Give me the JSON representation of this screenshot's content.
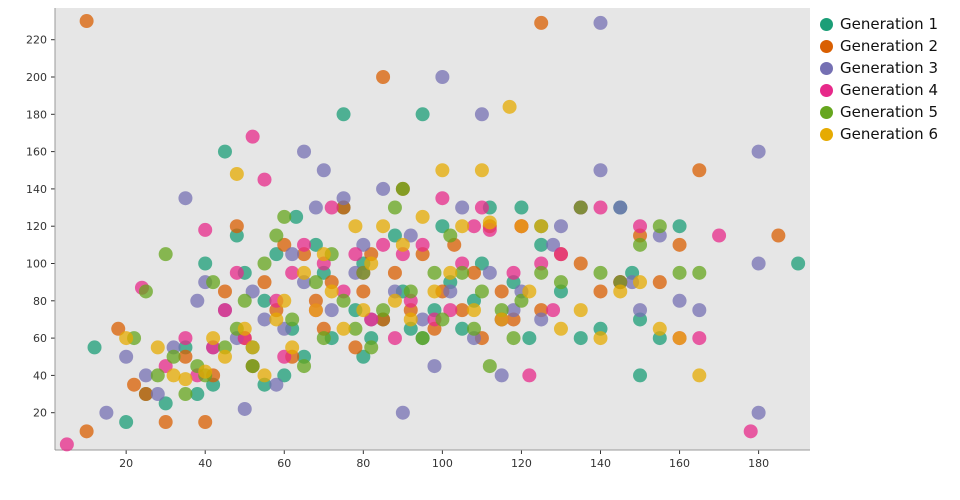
{
  "chart_data": {
    "type": "scatter",
    "title": "",
    "xlabel": "",
    "ylabel": "",
    "xlim": [
      2,
      193
    ],
    "ylim": [
      0,
      237
    ],
    "xticks": [
      20,
      40,
      60,
      80,
      100,
      120,
      140,
      160,
      180
    ],
    "yticks": [
      20,
      40,
      60,
      80,
      100,
      120,
      140,
      160,
      180,
      200,
      220
    ],
    "legend_position": "right",
    "grid": false,
    "plot_background": "#e6e6e6",
    "marker": {
      "radius": 7,
      "opacity": 0.75
    },
    "series": [
      {
        "name": "Generation 1",
        "color": "#1b9e77",
        "points": [
          [
            12,
            55
          ],
          [
            20,
            15
          ],
          [
            25,
            30
          ],
          [
            30,
            25
          ],
          [
            35,
            55
          ],
          [
            38,
            30
          ],
          [
            40,
            100
          ],
          [
            42,
            35
          ],
          [
            45,
            160
          ],
          [
            48,
            115
          ],
          [
            50,
            95
          ],
          [
            52,
            55
          ],
          [
            55,
            80
          ],
          [
            55,
            35
          ],
          [
            58,
            105
          ],
          [
            60,
            40
          ],
          [
            62,
            65
          ],
          [
            63,
            125
          ],
          [
            65,
            50
          ],
          [
            68,
            110
          ],
          [
            70,
            95
          ],
          [
            72,
            60
          ],
          [
            75,
            180
          ],
          [
            75,
            130
          ],
          [
            78,
            75
          ],
          [
            80,
            100
          ],
          [
            80,
            50
          ],
          [
            82,
            60
          ],
          [
            85,
            70
          ],
          [
            88,
            115
          ],
          [
            90,
            85
          ],
          [
            92,
            65
          ],
          [
            95,
            180
          ],
          [
            95,
            60
          ],
          [
            98,
            75
          ],
          [
            100,
            120
          ],
          [
            102,
            90
          ],
          [
            105,
            65
          ],
          [
            108,
            80
          ],
          [
            110,
            100
          ],
          [
            112,
            130
          ],
          [
            115,
            70
          ],
          [
            118,
            90
          ],
          [
            120,
            130
          ],
          [
            122,
            60
          ],
          [
            125,
            120
          ],
          [
            125,
            110
          ],
          [
            130,
            85
          ],
          [
            135,
            60
          ],
          [
            140,
            65
          ],
          [
            145,
            130
          ],
          [
            148,
            95
          ],
          [
            150,
            70
          ],
          [
            150,
            40
          ],
          [
            155,
            60
          ],
          [
            160,
            120
          ],
          [
            190,
            100
          ]
        ]
      },
      {
        "name": "Generation 2",
        "color": "#d95f02",
        "points": [
          [
            10,
            230
          ],
          [
            10,
            10
          ],
          [
            18,
            65
          ],
          [
            22,
            35
          ],
          [
            25,
            30
          ],
          [
            30,
            15
          ],
          [
            35,
            50
          ],
          [
            40,
            15
          ],
          [
            42,
            40
          ],
          [
            45,
            85
          ],
          [
            48,
            120
          ],
          [
            50,
            60
          ],
          [
            52,
            45
          ],
          [
            55,
            90
          ],
          [
            58,
            75
          ],
          [
            60,
            110
          ],
          [
            62,
            50
          ],
          [
            65,
            105
          ],
          [
            68,
            80
          ],
          [
            70,
            65
          ],
          [
            72,
            90
          ],
          [
            75,
            130
          ],
          [
            78,
            55
          ],
          [
            80,
            85
          ],
          [
            82,
            105
          ],
          [
            85,
            200
          ],
          [
            85,
            70
          ],
          [
            88,
            95
          ],
          [
            90,
            140
          ],
          [
            92,
            75
          ],
          [
            95,
            105
          ],
          [
            98,
            65
          ],
          [
            100,
            85
          ],
          [
            103,
            110
          ],
          [
            105,
            75
          ],
          [
            108,
            95
          ],
          [
            110,
            60
          ],
          [
            112,
            120
          ],
          [
            115,
            85
          ],
          [
            118,
            70
          ],
          [
            120,
            120
          ],
          [
            125,
            229
          ],
          [
            125,
            75
          ],
          [
            130,
            105
          ],
          [
            135,
            100
          ],
          [
            140,
            85
          ],
          [
            145,
            90
          ],
          [
            150,
            115
          ],
          [
            155,
            90
          ],
          [
            160,
            110
          ],
          [
            165,
            150
          ],
          [
            185,
            115
          ]
        ]
      },
      {
        "name": "Generation 3",
        "color": "#7570b3",
        "points": [
          [
            15,
            20
          ],
          [
            20,
            50
          ],
          [
            25,
            40
          ],
          [
            28,
            30
          ],
          [
            32,
            55
          ],
          [
            35,
            135
          ],
          [
            38,
            80
          ],
          [
            40,
            90
          ],
          [
            42,
            55
          ],
          [
            45,
            75
          ],
          [
            48,
            60
          ],
          [
            50,
            22
          ],
          [
            52,
            85
          ],
          [
            55,
            70
          ],
          [
            58,
            35
          ],
          [
            60,
            65
          ],
          [
            62,
            105
          ],
          [
            65,
            160
          ],
          [
            65,
            90
          ],
          [
            68,
            130
          ],
          [
            70,
            150
          ],
          [
            72,
            75
          ],
          [
            75,
            135
          ],
          [
            78,
            95
          ],
          [
            80,
            110
          ],
          [
            82,
            70
          ],
          [
            85,
            140
          ],
          [
            88,
            85
          ],
          [
            90,
            20
          ],
          [
            92,
            115
          ],
          [
            95,
            70
          ],
          [
            98,
            45
          ],
          [
            100,
            200
          ],
          [
            102,
            85
          ],
          [
            105,
            130
          ],
          [
            108,
            60
          ],
          [
            110,
            180
          ],
          [
            112,
            95
          ],
          [
            115,
            40
          ],
          [
            118,
            75
          ],
          [
            120,
            85
          ],
          [
            125,
            70
          ],
          [
            128,
            110
          ],
          [
            130,
            120
          ],
          [
            135,
            130
          ],
          [
            140,
            229
          ],
          [
            140,
            150
          ],
          [
            145,
            130
          ],
          [
            148,
            90
          ],
          [
            150,
            75
          ],
          [
            155,
            115
          ],
          [
            160,
            80
          ],
          [
            165,
            75
          ],
          [
            180,
            160
          ],
          [
            180,
            100
          ],
          [
            180,
            20
          ]
        ]
      },
      {
        "name": "Generation 4",
        "color": "#e7298a",
        "points": [
          [
            5,
            3
          ],
          [
            24,
            87
          ],
          [
            30,
            45
          ],
          [
            35,
            60
          ],
          [
            38,
            40
          ],
          [
            40,
            118
          ],
          [
            42,
            55
          ],
          [
            45,
            75
          ],
          [
            48,
            95
          ],
          [
            50,
            60
          ],
          [
            52,
            168
          ],
          [
            55,
            145
          ],
          [
            58,
            80
          ],
          [
            60,
            50
          ],
          [
            62,
            95
          ],
          [
            65,
            110
          ],
          [
            68,
            75
          ],
          [
            70,
            100
          ],
          [
            72,
            130
          ],
          [
            75,
            85
          ],
          [
            78,
            105
          ],
          [
            80,
            95
          ],
          [
            82,
            70
          ],
          [
            85,
            110
          ],
          [
            88,
            60
          ],
          [
            90,
            105
          ],
          [
            92,
            80
          ],
          [
            95,
            110
          ],
          [
            98,
            70
          ],
          [
            100,
            135
          ],
          [
            102,
            75
          ],
          [
            105,
            100
          ],
          [
            108,
            120
          ],
          [
            110,
            130
          ],
          [
            112,
            118
          ],
          [
            115,
            70
          ],
          [
            118,
            95
          ],
          [
            120,
            120
          ],
          [
            122,
            40
          ],
          [
            125,
            100
          ],
          [
            128,
            75
          ],
          [
            130,
            105
          ],
          [
            135,
            130
          ],
          [
            140,
            130
          ],
          [
            145,
            90
          ],
          [
            150,
            120
          ],
          [
            160,
            60
          ],
          [
            165,
            60
          ],
          [
            170,
            115
          ],
          [
            178,
            10
          ]
        ]
      },
      {
        "name": "Generation 5",
        "color": "#66a61e",
        "points": [
          [
            22,
            60
          ],
          [
            25,
            85
          ],
          [
            28,
            40
          ],
          [
            30,
            105
          ],
          [
            32,
            50
          ],
          [
            35,
            30
          ],
          [
            38,
            45
          ],
          [
            40,
            40
          ],
          [
            42,
            90
          ],
          [
            45,
            55
          ],
          [
            48,
            65
          ],
          [
            50,
            80
          ],
          [
            52,
            45
          ],
          [
            55,
            100
          ],
          [
            58,
            115
          ],
          [
            60,
            125
          ],
          [
            62,
            70
          ],
          [
            65,
            45
          ],
          [
            68,
            90
          ],
          [
            70,
            60
          ],
          [
            72,
            105
          ],
          [
            75,
            80
          ],
          [
            78,
            65
          ],
          [
            80,
            95
          ],
          [
            82,
            55
          ],
          [
            85,
            75
          ],
          [
            88,
            130
          ],
          [
            90,
            140
          ],
          [
            92,
            85
          ],
          [
            95,
            60
          ],
          [
            98,
            95
          ],
          [
            100,
            70
          ],
          [
            102,
            115
          ],
          [
            105,
            95
          ],
          [
            108,
            65
          ],
          [
            110,
            85
          ],
          [
            112,
            45
          ],
          [
            115,
            75
          ],
          [
            118,
            60
          ],
          [
            120,
            80
          ],
          [
            125,
            95
          ],
          [
            130,
            90
          ],
          [
            135,
            130
          ],
          [
            140,
            95
          ],
          [
            145,
            90
          ],
          [
            150,
            110
          ],
          [
            155,
            120
          ],
          [
            160,
            95
          ],
          [
            165,
            95
          ]
        ]
      },
      {
        "name": "Generation 6",
        "color": "#e6ab02",
        "points": [
          [
            20,
            60
          ],
          [
            28,
            55
          ],
          [
            32,
            40
          ],
          [
            35,
            38
          ],
          [
            40,
            42
          ],
          [
            42,
            60
          ],
          [
            45,
            50
          ],
          [
            48,
            148
          ],
          [
            50,
            65
          ],
          [
            52,
            55
          ],
          [
            55,
            40
          ],
          [
            58,
            70
          ],
          [
            60,
            80
          ],
          [
            62,
            55
          ],
          [
            65,
            95
          ],
          [
            68,
            75
          ],
          [
            70,
            105
          ],
          [
            72,
            85
          ],
          [
            75,
            65
          ],
          [
            78,
            120
          ],
          [
            80,
            75
          ],
          [
            82,
            100
          ],
          [
            85,
            120
          ],
          [
            88,
            80
          ],
          [
            90,
            110
          ],
          [
            92,
            70
          ],
          [
            95,
            125
          ],
          [
            98,
            85
          ],
          [
            100,
            150
          ],
          [
            102,
            95
          ],
          [
            105,
            120
          ],
          [
            108,
            75
          ],
          [
            110,
            150
          ],
          [
            112,
            122
          ],
          [
            115,
            70
          ],
          [
            117,
            184
          ],
          [
            120,
            120
          ],
          [
            122,
            85
          ],
          [
            125,
            120
          ],
          [
            130,
            65
          ],
          [
            135,
            75
          ],
          [
            140,
            60
          ],
          [
            145,
            85
          ],
          [
            150,
            90
          ],
          [
            155,
            65
          ],
          [
            160,
            60
          ],
          [
            165,
            40
          ]
        ]
      }
    ]
  },
  "legend": {
    "items": [
      {
        "label": "Generation 1",
        "color": "#1b9e77"
      },
      {
        "label": "Generation 2",
        "color": "#d95f02"
      },
      {
        "label": "Generation 3",
        "color": "#7570b3"
      },
      {
        "label": "Generation 4",
        "color": "#e7298a"
      },
      {
        "label": "Generation 5",
        "color": "#66a61e"
      },
      {
        "label": "Generation 6",
        "color": "#e6ab02"
      }
    ]
  }
}
